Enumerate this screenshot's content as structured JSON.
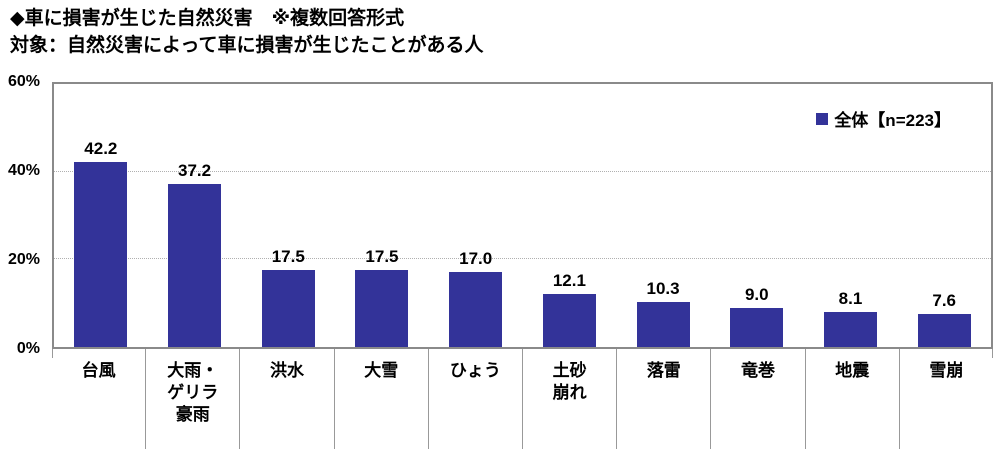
{
  "header": {
    "title": "◆車に損害が生じた自然災害　※複数回答形式",
    "subtitle": "対象：自然災害によって車に損害が生じたことがある人"
  },
  "legend": {
    "marker": "square-icon",
    "marker_color": "#333399",
    "label": "全体【n=223】"
  },
  "chart_data": {
    "type": "bar",
    "title": "◆車に損害が生じた自然災害　※複数回答形式",
    "subtitle": "対象：自然災害によって車に損害が生じたことがある人",
    "categories": [
      "台風",
      "大雨・\nゲリラ\n豪雨",
      "洪水",
      "大雪",
      "ひょう",
      "土砂\n崩れ",
      "落雷",
      "竜巻",
      "地震",
      "雪崩"
    ],
    "values": [
      42.2,
      37.2,
      17.5,
      17.5,
      17.0,
      12.1,
      10.3,
      9.0,
      8.1,
      7.6
    ],
    "series_name": "全体【n=223】",
    "n": 223,
    "ylim": [
      0,
      60
    ],
    "yticks": [
      {
        "value": 0,
        "label": "0%"
      },
      {
        "value": 20,
        "label": "20%"
      },
      {
        "value": 40,
        "label": "40%"
      },
      {
        "value": 60,
        "label": "60%"
      }
    ],
    "gridline_values": [
      20,
      40
    ],
    "grid": true,
    "legend_position": "top-right-inside",
    "bar_color": "#333399",
    "value_label_decimals": 1
  }
}
